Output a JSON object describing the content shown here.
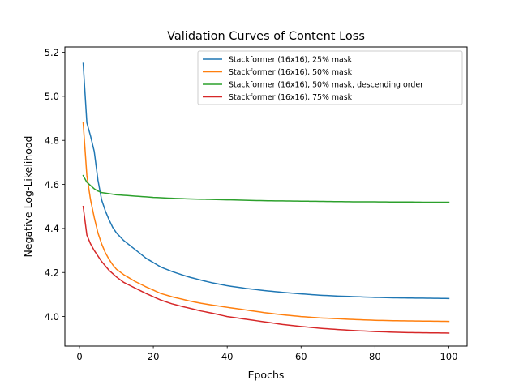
{
  "chart_data": {
    "type": "line",
    "title": "Validation Curves of Content Loss",
    "xlabel": "Epochs",
    "ylabel": "Negative Log-Likelihood",
    "xlim": [
      -3.95,
      104.95
    ],
    "ylim": [
      3.866,
      5.224
    ],
    "xticks": [
      0,
      20,
      40,
      60,
      80,
      100
    ],
    "yticks": [
      4.0,
      4.2,
      4.4,
      4.6,
      4.8,
      5.0,
      5.2
    ],
    "xtick_labels": [
      "0",
      "20",
      "40",
      "60",
      "80",
      "100"
    ],
    "ytick_labels": [
      "4.0",
      "4.2",
      "4.4",
      "4.6",
      "4.8",
      "5.0",
      "5.2"
    ],
    "grid": false,
    "legend_position": "top-right",
    "series": [
      {
        "name": "Stackformer (16x16), 25% mask",
        "color": "#1f77b4",
        "keypoints": [
          [
            1,
            5.15
          ],
          [
            2,
            4.88
          ],
          [
            3,
            4.82
          ],
          [
            4,
            4.75
          ],
          [
            5,
            4.62
          ],
          [
            6,
            4.53
          ],
          [
            7,
            4.48
          ],
          [
            8,
            4.44
          ],
          [
            9,
            4.405
          ],
          [
            10,
            4.38
          ],
          [
            12,
            4.345
          ],
          [
            15,
            4.305
          ],
          [
            18,
            4.265
          ],
          [
            20,
            4.245
          ],
          [
            22,
            4.225
          ],
          [
            25,
            4.205
          ],
          [
            28,
            4.188
          ],
          [
            30,
            4.178
          ],
          [
            33,
            4.165
          ],
          [
            36,
            4.153
          ],
          [
            40,
            4.14
          ],
          [
            45,
            4.128
          ],
          [
            50,
            4.118
          ],
          [
            55,
            4.11
          ],
          [
            60,
            4.103
          ],
          [
            65,
            4.097
          ],
          [
            70,
            4.093
          ],
          [
            75,
            4.09
          ],
          [
            80,
            4.087
          ],
          [
            85,
            4.085
          ],
          [
            90,
            4.084
          ],
          [
            95,
            4.083
          ],
          [
            100,
            4.082
          ]
        ]
      },
      {
        "name": "Stackformer (16x16), 50% mask",
        "color": "#ff7f0e",
        "keypoints": [
          [
            1,
            4.88
          ],
          [
            2,
            4.64
          ],
          [
            3,
            4.53
          ],
          [
            4,
            4.45
          ],
          [
            5,
            4.38
          ],
          [
            6,
            4.33
          ],
          [
            7,
            4.29
          ],
          [
            8,
            4.26
          ],
          [
            9,
            4.235
          ],
          [
            10,
            4.215
          ],
          [
            12,
            4.19
          ],
          [
            15,
            4.16
          ],
          [
            18,
            4.135
          ],
          [
            20,
            4.12
          ],
          [
            22,
            4.105
          ],
          [
            25,
            4.09
          ],
          [
            28,
            4.078
          ],
          [
            30,
            4.07
          ],
          [
            33,
            4.06
          ],
          [
            36,
            4.052
          ],
          [
            40,
            4.042
          ],
          [
            45,
            4.03
          ],
          [
            50,
            4.018
          ],
          [
            55,
            4.008
          ],
          [
            60,
            4.0
          ],
          [
            65,
            3.994
          ],
          [
            70,
            3.99
          ],
          [
            75,
            3.986
          ],
          [
            80,
            3.983
          ],
          [
            85,
            3.981
          ],
          [
            90,
            3.98
          ],
          [
            95,
            3.979
          ],
          [
            100,
            3.978
          ]
        ]
      },
      {
        "name": "Stackformer (16x16), 50% mask, descending order",
        "color": "#2ca02c",
        "keypoints": [
          [
            1,
            4.64
          ],
          [
            2,
            4.61
          ],
          [
            3,
            4.595
          ],
          [
            4,
            4.58
          ],
          [
            5,
            4.57
          ],
          [
            6,
            4.563
          ],
          [
            8,
            4.558
          ],
          [
            10,
            4.553
          ],
          [
            15,
            4.547
          ],
          [
            20,
            4.541
          ],
          [
            25,
            4.537
          ],
          [
            30,
            4.534
          ],
          [
            35,
            4.532
          ],
          [
            40,
            4.53
          ],
          [
            45,
            4.528
          ],
          [
            50,
            4.526
          ],
          [
            55,
            4.525
          ],
          [
            60,
            4.524
          ],
          [
            65,
            4.523
          ],
          [
            70,
            4.522
          ],
          [
            75,
            4.521
          ],
          [
            80,
            4.521
          ],
          [
            85,
            4.52
          ],
          [
            90,
            4.52
          ],
          [
            95,
            4.519
          ],
          [
            100,
            4.519
          ]
        ]
      },
      {
        "name": "Stackformer (16x16), 75% mask",
        "color": "#d62728",
        "keypoints": [
          [
            1,
            4.5
          ],
          [
            2,
            4.37
          ],
          [
            3,
            4.33
          ],
          [
            4,
            4.3
          ],
          [
            5,
            4.275
          ],
          [
            6,
            4.25
          ],
          [
            7,
            4.23
          ],
          [
            8,
            4.21
          ],
          [
            9,
            4.195
          ],
          [
            10,
            4.18
          ],
          [
            12,
            4.155
          ],
          [
            15,
            4.13
          ],
          [
            18,
            4.105
          ],
          [
            20,
            4.09
          ],
          [
            22,
            4.075
          ],
          [
            25,
            4.058
          ],
          [
            28,
            4.045
          ],
          [
            30,
            4.037
          ],
          [
            33,
            4.025
          ],
          [
            36,
            4.015
          ],
          [
            40,
            4.0
          ],
          [
            45,
            3.988
          ],
          [
            50,
            3.976
          ],
          [
            55,
            3.964
          ],
          [
            60,
            3.955
          ],
          [
            65,
            3.947
          ],
          [
            70,
            3.941
          ],
          [
            75,
            3.936
          ],
          [
            80,
            3.932
          ],
          [
            85,
            3.929
          ],
          [
            90,
            3.927
          ],
          [
            95,
            3.926
          ],
          [
            100,
            3.925
          ]
        ]
      }
    ]
  }
}
